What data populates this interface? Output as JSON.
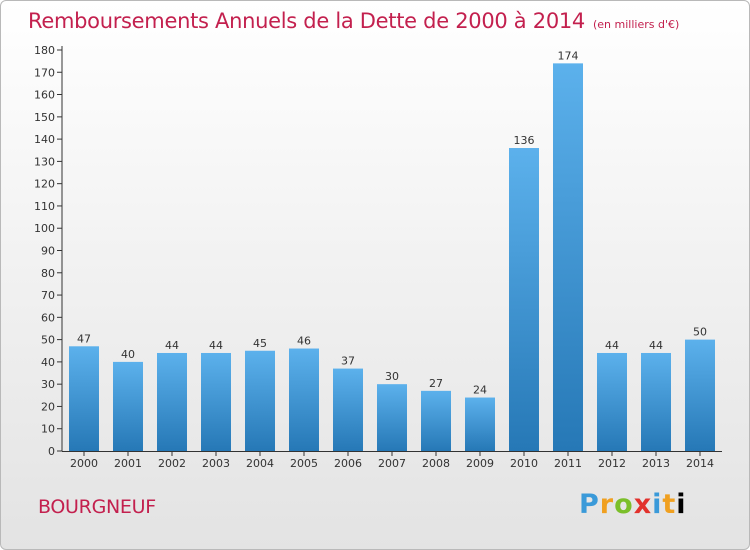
{
  "header": {
    "title": "Remboursements Annuels de la Dette de 2000 à 2014",
    "unit": "(en milliers d'€)"
  },
  "footer": {
    "commune": "BOURGNEUF",
    "logo": [
      "P",
      "r",
      "o",
      "x",
      "i",
      "t",
      "i"
    ]
  },
  "colors": {
    "accent": "#c3204e",
    "bar_light": "#5cb1ec",
    "bar_dark": "#2678b6"
  },
  "chart_data": {
    "type": "bar",
    "title": "Remboursements Annuels de la Dette de 2000 à 2014",
    "subtitle": "(en milliers d'€)",
    "categories": [
      "2000",
      "2001",
      "2002",
      "2003",
      "2004",
      "2005",
      "2006",
      "2007",
      "2008",
      "2009",
      "2010",
      "2011",
      "2012",
      "2013",
      "2014"
    ],
    "values": [
      47,
      40,
      44,
      44,
      45,
      46,
      37,
      30,
      27,
      24,
      136,
      174,
      44,
      44,
      50
    ],
    "ylim": [
      0,
      180
    ],
    "yticks": [
      0,
      10,
      20,
      30,
      40,
      50,
      60,
      70,
      80,
      90,
      100,
      110,
      120,
      130,
      140,
      150,
      160,
      170,
      180
    ],
    "grid": false,
    "legend": "none"
  }
}
